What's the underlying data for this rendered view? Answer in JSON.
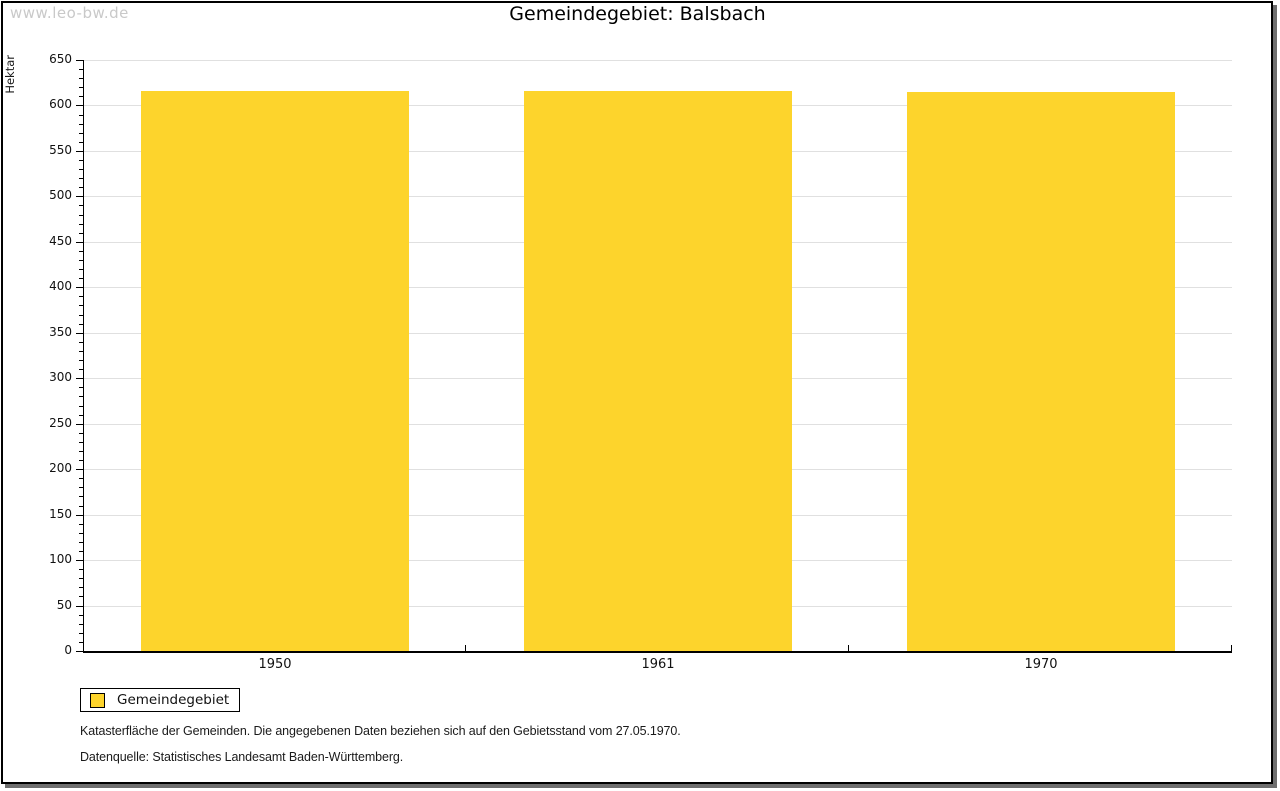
{
  "watermark": "www.leo-bw.de",
  "header": {
    "title": "Gemeindegebiet: Balsbach"
  },
  "chart_data": {
    "type": "bar",
    "title": "Gemeindegebiet: Balsbach",
    "categories": [
      "1950",
      "1961",
      "1970"
    ],
    "series": [
      {
        "name": "Gemeindegebiet",
        "values": [
          616,
          616,
          615
        ]
      }
    ],
    "xlabel": "",
    "ylabel": "Hektar",
    "ylim": [
      0,
      650
    ],
    "ytick_major_step": 50,
    "ytick_minor_step": 10,
    "grid": true,
    "legend_position": "bottom-left",
    "bar_color": "#FDD42C"
  },
  "legend": {
    "items": [
      {
        "label": "Gemeindegebiet",
        "color": "#FDD42C"
      }
    ]
  },
  "footnotes": {
    "line1": "Katasterfläche der Gemeinden. Die angegebenen Daten beziehen sich auf den Gebietsstand vom 27.05.1970.",
    "line2": "Datenquelle: Statistisches Landesamt Baden-Württemberg."
  },
  "colors": {
    "bar": "#FDD42C",
    "grid": "#E0E0E0",
    "axis": "#000000",
    "text": "#111111",
    "watermark": "#C9C9C9",
    "frame_shadow": "#6E6E6E"
  }
}
